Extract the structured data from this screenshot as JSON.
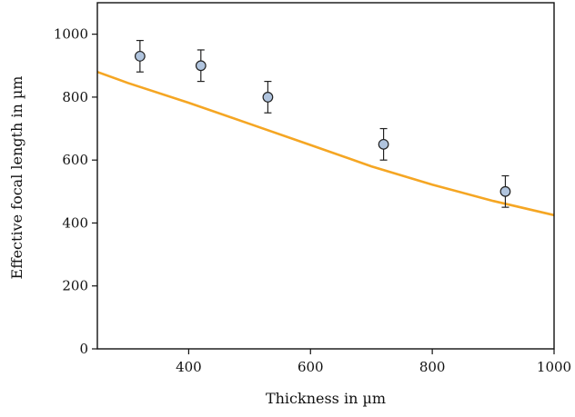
{
  "chart_data": {
    "type": "scatter",
    "title": "",
    "xlabel": "Thickness in µm",
    "ylabel": "Effective focal length in µm",
    "xlim": [
      250,
      1000
    ],
    "ylim": [
      0,
      1100
    ],
    "xticks": [
      400,
      600,
      800,
      1000
    ],
    "yticks": [
      0,
      200,
      400,
      600,
      800,
      1000
    ],
    "grid": false,
    "series": [
      {
        "kind": "scatter-errorbar",
        "color": "#b0c4de",
        "edge_color": "#222222",
        "x": [
          320,
          420,
          530,
          720,
          920
        ],
        "y": [
          930,
          900,
          800,
          650,
          500
        ],
        "yerr": [
          50,
          50,
          50,
          50,
          50
        ]
      },
      {
        "kind": "line",
        "color": "#f5a623",
        "x": [
          250,
          300,
          400,
          500,
          600,
          700,
          800,
          900,
          1000
        ],
        "y": [
          880,
          845,
          782,
          715,
          648,
          580,
          522,
          470,
          425
        ]
      }
    ]
  }
}
